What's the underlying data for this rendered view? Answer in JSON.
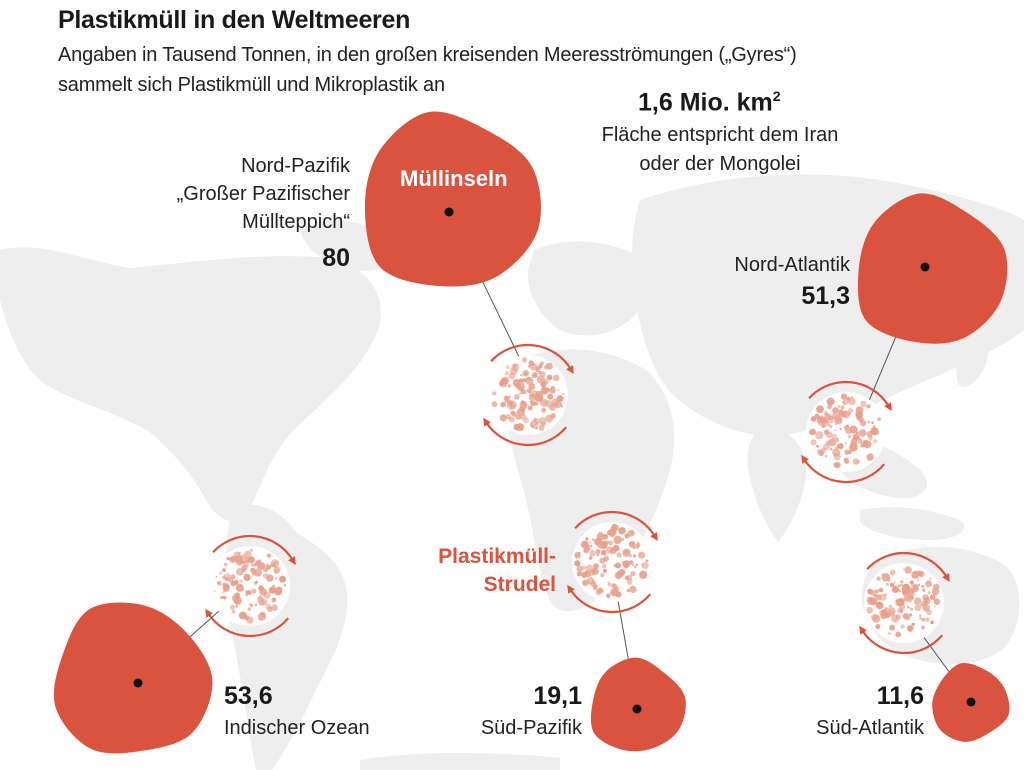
{
  "header": {
    "title": "Plastikmüll in den Weltmeeren",
    "subtitle_line1": "Angaben in Tausend Tonnen, in den großen kreisenden Meeresströmungen („Gyres“)",
    "subtitle_line2": "sammelt sich Plastikmüll und Mikroplastik an"
  },
  "area_note": {
    "value": "1,6 Mio. km",
    "value_sup": "2",
    "desc_line1": "Fläche entspricht dem Iran",
    "desc_line2": "oder der Mongolei"
  },
  "legend": {
    "islands_label": "Müllinseln",
    "vortex_label_line1": "Plastikmüll-",
    "vortex_label_line2": "Strudel"
  },
  "gyres": {
    "north_pacific": {
      "name_line1": "Nord-Pazifik",
      "name_line2": "„Großer Pazifischer",
      "name_line3": "Müllteppich“",
      "value": "80"
    },
    "north_atlantic": {
      "name": "Nord-Atlantik",
      "value": "51,3"
    },
    "indian_ocean": {
      "name": "Indischer Ozean",
      "value": "53,6"
    },
    "south_pacific": {
      "name": "Süd-Pazifik",
      "value": "19,1"
    },
    "south_atlantic": {
      "name": "Süd-Atlantik",
      "value": "11,6"
    }
  },
  "colors": {
    "blob": "#d9533f",
    "particles": "#e8a08c",
    "map": "#eeeeee",
    "text": "#1a1a1a"
  }
}
